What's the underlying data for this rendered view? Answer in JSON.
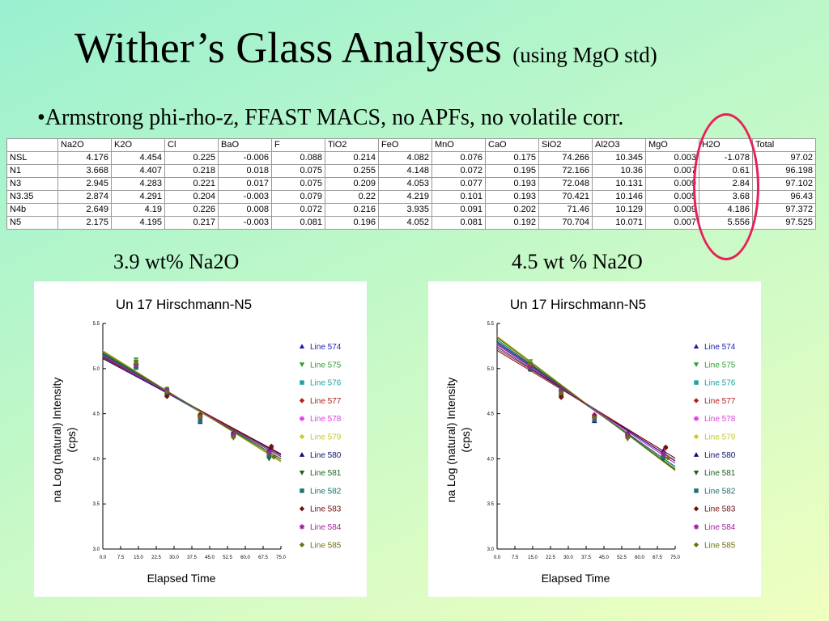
{
  "title": "Wither’s Glass Analyses",
  "title_sub": "(using MgO std)",
  "bullet": "•Armstrong phi-rho-z, FFAST MACS, no APFs, no volatile corr.",
  "table": {
    "headers": [
      "",
      "Na2O",
      "K2O",
      "Cl",
      "BaO",
      "F",
      "TiO2",
      "FeO",
      "MnO",
      "CaO",
      "SiO2",
      "Al2O3",
      "MgO",
      "H2O",
      "Total"
    ],
    "rows": [
      [
        "NSL",
        "4.176",
        "4.454",
        "0.225",
        "-0.006",
        "0.088",
        "0.214",
        "4.082",
        "0.076",
        "0.175",
        "74.266",
        "10.345",
        "0.003",
        "-1.078",
        "97.02"
      ],
      [
        "N1",
        "3.668",
        "4.407",
        "0.218",
        "0.018",
        "0.075",
        "0.255",
        "4.148",
        "0.072",
        "0.195",
        "72.166",
        "10.36",
        "0.007",
        "0.61",
        "96.198"
      ],
      [
        "N3",
        "2.945",
        "4.283",
        "0.221",
        "0.017",
        "0.075",
        "0.209",
        "4.053",
        "0.077",
        "0.193",
        "72.048",
        "10.131",
        "0.009",
        "2.84",
        "97.102"
      ],
      [
        "N3.35",
        "2.874",
        "4.291",
        "0.204",
        "-0.003",
        "0.079",
        "0.22",
        "4.219",
        "0.101",
        "0.193",
        "70.421",
        "10.146",
        "0.005",
        "3.68",
        "96.43"
      ],
      [
        "N4b",
        "2.649",
        "4.19",
        "0.226",
        "0.008",
        "0.072",
        "0.216",
        "3.935",
        "0.091",
        "0.202",
        "71.46",
        "10.129",
        "0.009",
        "4.186",
        "97.372"
      ],
      [
        "N5",
        "2.175",
        "4.195",
        "0.217",
        "-0.003",
        "0.081",
        "0.196",
        "4.052",
        "0.081",
        "0.192",
        "70.704",
        "10.071",
        "0.007",
        "5.556",
        "97.525"
      ]
    ]
  },
  "captions": {
    "left": "3.9 wt% Na2O",
    "right": "4.5 wt % Na2O"
  },
  "colors": {
    "highlight_oval": "#e8205a"
  },
  "chart_data": [
    {
      "type": "scatter",
      "title": "Un   17  Hirschmann-N5",
      "xlabel": "Elapsed Time",
      "ylabel": [
        "na  Log (natural) Intensity",
        "(cps)"
      ],
      "xlim": [
        0,
        75
      ],
      "ylim": [
        3.0,
        5.5
      ],
      "xticks": [
        "0.0",
        "7.5",
        "15.0",
        "22.5",
        "30.0",
        "37.5",
        "45.0",
        "52.5",
        "60.0",
        "67.5",
        "75.0"
      ],
      "yticks": [
        "3.0",
        "3.5",
        "4.0",
        "4.5",
        "5.0",
        "5.5"
      ],
      "legend_position": "right",
      "series": [
        {
          "name": "Line 574",
          "color": "#2020b0",
          "marker": "triangle-up",
          "y0": 5.16,
          "slope": -0.0155,
          "points": [
            [
              14,
              5.06
            ],
            [
              27,
              4.76
            ],
            [
              41,
              4.43
            ],
            [
              55,
              4.31
            ],
            [
              70,
              4.05
            ]
          ]
        },
        {
          "name": "Line 575",
          "color": "#30a030",
          "marker": "triangle-down",
          "y0": 5.18,
          "slope": -0.0158,
          "points": [
            [
              14,
              5.1
            ],
            [
              27,
              4.72
            ],
            [
              41,
              4.46
            ],
            [
              55,
              4.24
            ],
            [
              70,
              4.01
            ]
          ]
        },
        {
          "name": "Line 576",
          "color": "#20a0a0",
          "marker": "square",
          "y0": 5.14,
          "slope": -0.0152,
          "points": [
            [
              14,
              5.02
            ],
            [
              27,
              4.74
            ],
            [
              41,
              4.44
            ],
            [
              55,
              4.27
            ],
            [
              70,
              4.03
            ]
          ]
        },
        {
          "name": "Line 577",
          "color": "#b02020",
          "marker": "diamond",
          "y0": 5.12,
          "slope": -0.0142,
          "points": [
            [
              14,
              5.04
            ],
            [
              27,
              4.7
            ],
            [
              41,
              4.48
            ],
            [
              55,
              4.29
            ],
            [
              71,
              4.12
            ]
          ]
        },
        {
          "name": "Line 578",
          "color": "#e040e0",
          "marker": "star",
          "y0": 5.13,
          "slope": -0.0147,
          "points": [
            [
              14,
              5.05
            ],
            [
              27,
              4.75
            ],
            [
              41,
              4.47
            ],
            [
              55,
              4.28
            ],
            [
              70,
              4.08
            ]
          ]
        },
        {
          "name": "Line 579",
          "color": "#c8c830",
          "marker": "diamond",
          "y0": 5.2,
          "slope": -0.0165,
          "points": [
            [
              14,
              5.08
            ],
            [
              27,
              4.78
            ],
            [
              41,
              4.5
            ],
            [
              55,
              4.26
            ],
            [
              72,
              4.02
            ]
          ]
        },
        {
          "name": "Line 580",
          "color": "#101070",
          "marker": "triangle-up",
          "y0": 5.11,
          "slope": -0.0141,
          "points": [
            [
              14,
              5.03
            ],
            [
              27,
              4.73
            ],
            [
              41,
              4.41
            ],
            [
              55,
              4.3
            ],
            [
              70,
              4.1
            ]
          ]
        },
        {
          "name": "Line 581",
          "color": "#206020",
          "marker": "triangle-down",
          "y0": 5.17,
          "slope": -0.0156,
          "points": [
            [
              14,
              5.07
            ],
            [
              27,
              4.71
            ],
            [
              41,
              4.45
            ],
            [
              55,
              4.23
            ],
            [
              70,
              4.0
            ]
          ]
        },
        {
          "name": "Line 582",
          "color": "#207070",
          "marker": "square",
          "y0": 5.15,
          "slope": -0.015,
          "points": [
            [
              14,
              5.01
            ],
            [
              27,
              4.77
            ],
            [
              41,
              4.42
            ],
            [
              55,
              4.25
            ],
            [
              70,
              4.04
            ]
          ]
        },
        {
          "name": "Line 583",
          "color": "#701010",
          "marker": "diamond",
          "y0": 5.13,
          "slope": -0.0145,
          "points": [
            [
              14,
              5.05
            ],
            [
              27,
              4.69
            ],
            [
              41,
              4.49
            ],
            [
              55,
              4.26
            ],
            [
              71,
              4.14
            ]
          ]
        },
        {
          "name": "Line 584",
          "color": "#a020a0",
          "marker": "star",
          "y0": 5.14,
          "slope": -0.0149,
          "points": [
            [
              14,
              5.04
            ],
            [
              27,
              4.76
            ],
            [
              41,
              4.46
            ],
            [
              55,
              4.27
            ],
            [
              70,
              4.07
            ]
          ]
        },
        {
          "name": "Line 585",
          "color": "#707010",
          "marker": "diamond",
          "y0": 5.19,
          "slope": -0.0162,
          "points": [
            [
              14,
              5.06
            ],
            [
              27,
              4.74
            ],
            [
              41,
              4.47
            ],
            [
              55,
              4.24
            ],
            [
              72,
              4.02
            ]
          ]
        }
      ]
    },
    {
      "type": "scatter",
      "title": "Un   17  Hirschmann-N5",
      "xlabel": "Elapsed Time",
      "ylabel": [
        "na  Log (natural) Intensity",
        "(cps)"
      ],
      "xlim": [
        0,
        75
      ],
      "ylim": [
        3.0,
        5.5
      ],
      "xticks": [
        "0.0",
        "7.5",
        "15.0",
        "22.5",
        "30.0",
        "37.5",
        "45.0",
        "52.5",
        "60.0",
        "67.5",
        "75.0"
      ],
      "yticks": [
        "3.0",
        "3.5",
        "4.0",
        "4.5",
        "5.0",
        "5.5"
      ],
      "legend_position": "right",
      "series": [
        {
          "name": "Line 574",
          "color": "#2020b0",
          "marker": "triangle-up",
          "y0": 5.3,
          "slope": -0.0185,
          "points": [
            [
              14,
              5.03
            ],
            [
              27,
              4.74
            ],
            [
              41,
              4.43
            ],
            [
              55,
              4.28
            ],
            [
              70,
              4.05
            ]
          ]
        },
        {
          "name": "Line 575",
          "color": "#30a030",
          "marker": "triangle-down",
          "y0": 5.34,
          "slope": -0.0195,
          "points": [
            [
              14,
              5.08
            ],
            [
              27,
              4.72
            ],
            [
              41,
              4.44
            ],
            [
              55,
              4.23
            ],
            [
              70,
              4.0
            ]
          ]
        },
        {
          "name": "Line 576",
          "color": "#20a0a0",
          "marker": "square",
          "y0": 5.28,
          "slope": -0.0182,
          "points": [
            [
              14,
              5.0
            ],
            [
              27,
              4.73
            ],
            [
              41,
              4.45
            ],
            [
              55,
              4.25
            ],
            [
              70,
              4.02
            ]
          ]
        },
        {
          "name": "Line 577",
          "color": "#b02020",
          "marker": "diamond",
          "y0": 5.22,
          "slope": -0.0162,
          "points": [
            [
              14,
              5.02
            ],
            [
              27,
              4.69
            ],
            [
              41,
              4.47
            ],
            [
              55,
              4.27
            ],
            [
              71,
              4.12
            ]
          ]
        },
        {
          "name": "Line 578",
          "color": "#e040e0",
          "marker": "star",
          "y0": 5.26,
          "slope": -0.0172,
          "points": [
            [
              14,
              5.04
            ],
            [
              27,
              4.77
            ],
            [
              41,
              4.49
            ],
            [
              55,
              4.28
            ],
            [
              70,
              4.08
            ]
          ]
        },
        {
          "name": "Line 579",
          "color": "#c8c830",
          "marker": "diamond",
          "y0": 5.36,
          "slope": -0.0199,
          "points": [
            [
              14,
              5.06
            ],
            [
              27,
              4.76
            ],
            [
              41,
              4.48
            ],
            [
              55,
              4.24
            ],
            [
              72,
              4.01
            ]
          ]
        },
        {
          "name": "Line 580",
          "color": "#101070",
          "marker": "triangle-up",
          "y0": 5.24,
          "slope": -0.0168,
          "points": [
            [
              14,
              5.01
            ],
            [
              27,
              4.72
            ],
            [
              41,
              4.42
            ],
            [
              55,
              4.29
            ],
            [
              70,
              4.09
            ]
          ]
        },
        {
          "name": "Line 581",
          "color": "#206020",
          "marker": "triangle-down",
          "y0": 5.32,
          "slope": -0.0191,
          "points": [
            [
              14,
              5.05
            ],
            [
              27,
              4.7
            ],
            [
              41,
              4.44
            ],
            [
              55,
              4.22
            ],
            [
              70,
              3.99
            ]
          ]
        },
        {
          "name": "Line 582",
          "color": "#207070",
          "marker": "square",
          "y0": 5.29,
          "slope": -0.0184,
          "points": [
            [
              14,
              4.99
            ],
            [
              27,
              4.75
            ],
            [
              41,
              4.43
            ],
            [
              55,
              4.25
            ],
            [
              70,
              4.03
            ]
          ]
        },
        {
          "name": "Line 583",
          "color": "#701010",
          "marker": "diamond",
          "y0": 5.2,
          "slope": -0.0159,
          "points": [
            [
              14,
              5.03
            ],
            [
              27,
              4.68
            ],
            [
              41,
              4.48
            ],
            [
              55,
              4.26
            ],
            [
              71,
              4.13
            ]
          ]
        },
        {
          "name": "Line 584",
          "color": "#a020a0",
          "marker": "star",
          "y0": 5.27,
          "slope": -0.0176,
          "points": [
            [
              14,
              5.02
            ],
            [
              27,
              4.75
            ],
            [
              41,
              4.46
            ],
            [
              55,
              4.27
            ],
            [
              70,
              4.06
            ]
          ]
        },
        {
          "name": "Line 585",
          "color": "#707010",
          "marker": "diamond",
          "y0": 5.35,
          "slope": -0.0197,
          "points": [
            [
              14,
              5.05
            ],
            [
              27,
              4.73
            ],
            [
              41,
              4.46
            ],
            [
              55,
              4.23
            ],
            [
              72,
              4.01
            ]
          ]
        }
      ]
    }
  ]
}
